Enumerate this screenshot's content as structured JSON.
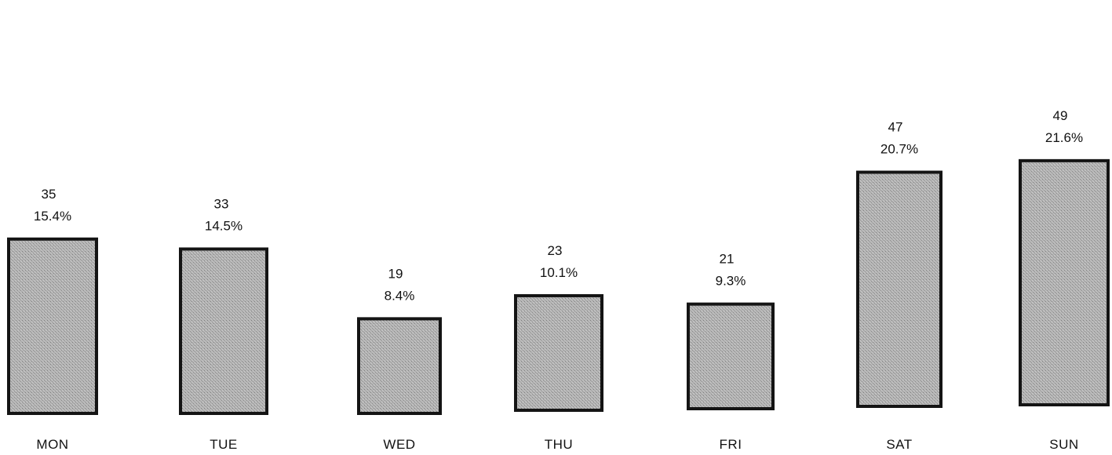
{
  "chart_data": {
    "type": "bar",
    "title": "",
    "xlabel": "",
    "ylabel": "",
    "categories": [
      "MON",
      "TUE",
      "WED",
      "THU",
      "FRI",
      "SAT",
      "SUN"
    ],
    "values": [
      35,
      33,
      19,
      23,
      21,
      47,
      49
    ],
    "value_labels": [
      "35",
      "33",
      "19",
      "23",
      "21",
      "47",
      "49"
    ],
    "percent_labels": [
      "15.4%",
      "14.5%",
      "8.4%",
      "10.1%",
      "9.3%",
      "20.7%",
      "21.6%"
    ],
    "ylim": [
      0,
      50
    ],
    "grid": false,
    "legend": "none",
    "bar_fill": "#a9a9a9",
    "bar_outline": "#141414"
  }
}
